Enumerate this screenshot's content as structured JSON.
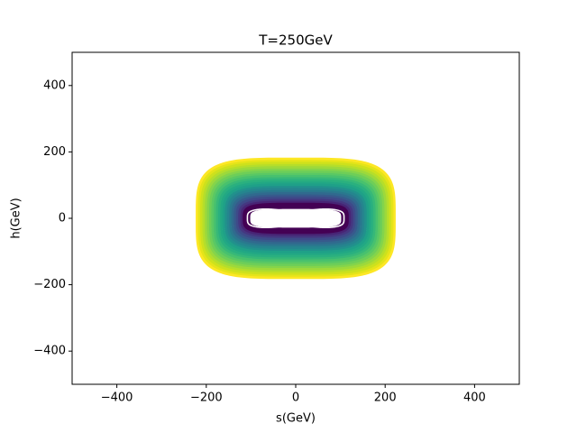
{
  "chart_data": {
    "type": "contour",
    "title": "T=250GeV",
    "x_label": "s(GeV)",
    "y_label": "h(GeV)",
    "xlim": [
      -500,
      500
    ],
    "ylim": [
      -500,
      500
    ],
    "xticks": [
      {
        "value": -400,
        "label": "−400"
      },
      {
        "value": -200,
        "label": "−200"
      },
      0,
      200,
      400
    ],
    "yticks": [
      {
        "value": -400,
        "label": "−400"
      },
      {
        "value": -200,
        "label": "−200"
      },
      0,
      200,
      400
    ],
    "contours": [
      {
        "s_half": 220,
        "h_half": 178,
        "color": "#fde725"
      },
      {
        "s_half": 215,
        "h_half": 171,
        "color": "#e5e419"
      },
      {
        "s_half": 210,
        "h_half": 165,
        "color": "#cde11d"
      },
      {
        "s_half": 205,
        "h_half": 158,
        "color": "#b5de2b"
      },
      {
        "s_half": 200,
        "h_half": 152,
        "color": "#9dd93b"
      },
      {
        "s_half": 195,
        "h_half": 145,
        "color": "#84d44b"
      },
      {
        "s_half": 190,
        "h_half": 139,
        "color": "#6ece58"
      },
      {
        "s_half": 185,
        "h_half": 132,
        "color": "#5ac864"
      },
      {
        "s_half": 180,
        "h_half": 126,
        "color": "#48c16e"
      },
      {
        "s_half": 175,
        "h_half": 119,
        "color": "#37b878"
      },
      {
        "s_half": 170,
        "h_half": 113,
        "color": "#2ab07f"
      },
      {
        "s_half": 165,
        "h_half": 106,
        "color": "#22a884"
      },
      {
        "s_half": 160,
        "h_half": 100,
        "color": "#1fa088"
      },
      {
        "s_half": 155,
        "h_half": 93,
        "color": "#21918c"
      },
      {
        "s_half": 150,
        "h_half": 87,
        "color": "#25858e"
      },
      {
        "s_half": 145,
        "h_half": 80,
        "color": "#2a788e"
      },
      {
        "s_half": 140,
        "h_half": 74,
        "color": "#306a8e"
      },
      {
        "s_half": 135,
        "h_half": 67,
        "color": "#375a8c"
      },
      {
        "s_half": 130,
        "h_half": 61,
        "color": "#3e4a89"
      },
      {
        "s_half": 125,
        "h_half": 54,
        "color": "#453781"
      },
      {
        "s_half": 120,
        "h_half": 48,
        "color": "#482475"
      },
      {
        "s_half": 115,
        "h_half": 42,
        "color": "#440154"
      },
      {
        "s_half": 110,
        "h_half": 37,
        "color": "#440154"
      },
      {
        "s_half": 105,
        "h_half": 33,
        "color": "#440154"
      },
      {
        "s_half": 108,
        "h_half": 30,
        "color": "#ffffff",
        "waist": 0.35
      },
      {
        "s_half": 100,
        "h_half": 25,
        "color": "#ffffff",
        "waist": 0.45
      },
      {
        "s_half": 94,
        "h_half": 20,
        "color": "#ffffff",
        "waist": 0.5
      }
    ]
  }
}
